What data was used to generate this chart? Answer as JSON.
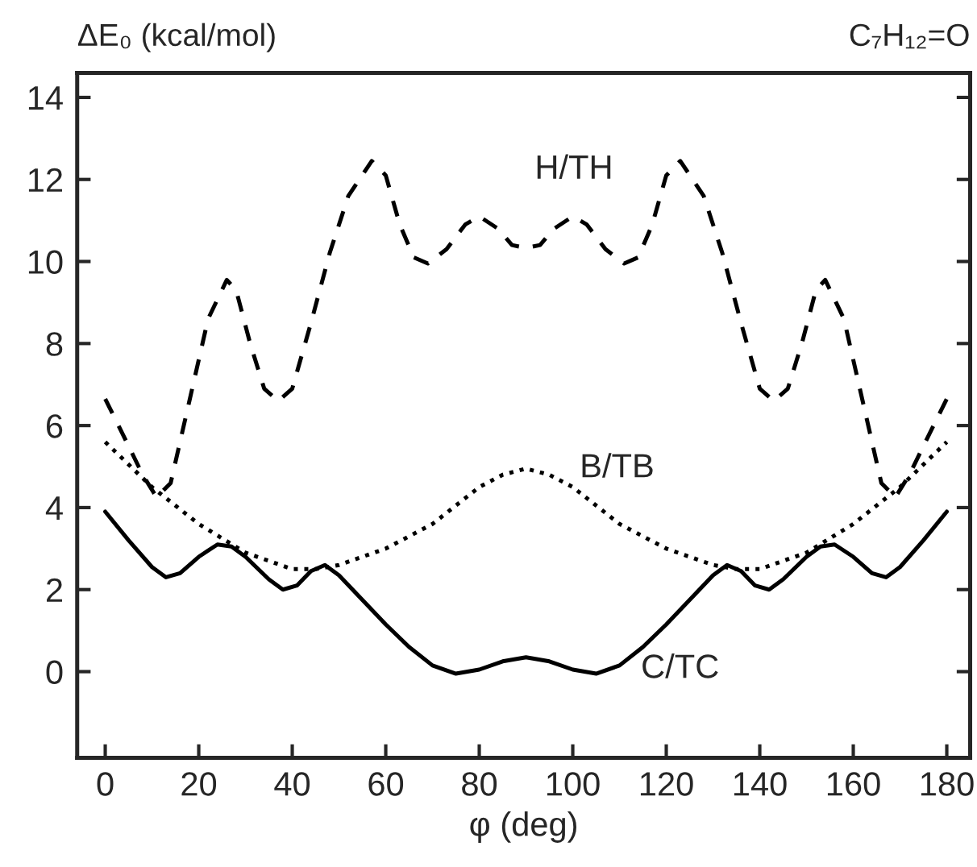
{
  "chart_data": {
    "type": "line",
    "title": "C₇H₁₂=O",
    "ylabel": "ΔE₀ (kcal/mol)",
    "xlabel": "φ (deg)",
    "xlim": [
      -6,
      185
    ],
    "ylim": [
      -2.1,
      14.6
    ],
    "xticks": [
      0,
      20,
      40,
      60,
      80,
      100,
      120,
      140,
      160,
      180
    ],
    "yticks": [
      0,
      2,
      4,
      6,
      8,
      10,
      12,
      14
    ],
    "grid": false,
    "legend": false,
    "series": [
      {
        "name": "H/TH",
        "color": "#000000",
        "line_style": "dashed",
        "x": [
          0,
          5,
          8,
          11,
          14,
          18,
          22,
          26,
          28,
          31,
          34,
          37,
          40,
          44,
          48,
          52,
          57,
          60,
          63,
          66,
          69,
          73,
          77,
          80,
          84,
          87,
          90,
          93,
          96,
          100,
          103,
          107,
          111,
          114,
          117,
          120,
          123,
          128,
          132,
          136,
          140,
          143,
          146,
          149,
          152,
          154,
          158,
          162,
          166,
          169,
          172,
          175,
          180
        ],
        "values": [
          6.65,
          5.5,
          4.8,
          4.25,
          4.6,
          6.6,
          8.6,
          9.55,
          9.3,
          8.0,
          6.9,
          6.6,
          6.9,
          8.5,
          10.2,
          11.6,
          12.45,
          12.1,
          10.9,
          10.1,
          9.95,
          10.3,
          10.9,
          11.1,
          10.8,
          10.4,
          10.33,
          10.4,
          10.8,
          11.1,
          10.9,
          10.3,
          9.95,
          10.1,
          10.9,
          12.1,
          12.45,
          11.6,
          10.2,
          8.5,
          6.9,
          6.6,
          6.9,
          8.0,
          9.3,
          9.55,
          8.6,
          6.6,
          4.6,
          4.25,
          4.8,
          5.5,
          6.65
        ]
      },
      {
        "name": "B/TB",
        "color": "#000000",
        "line_style": "dotted",
        "x": [
          0,
          10,
          20,
          30,
          40,
          45,
          50,
          60,
          70,
          80,
          85,
          90,
          95,
          100,
          110,
          120,
          130,
          135,
          140,
          150,
          160,
          170,
          180
        ],
        "values": [
          5.6,
          4.5,
          3.6,
          2.9,
          2.5,
          2.5,
          2.6,
          3.0,
          3.6,
          4.5,
          4.8,
          4.95,
          4.8,
          4.5,
          3.6,
          3.0,
          2.6,
          2.5,
          2.5,
          2.9,
          3.6,
          4.5,
          5.6
        ]
      },
      {
        "name": "C/TC",
        "color": "#000000",
        "line_style": "solid",
        "x": [
          0,
          5,
          10,
          13,
          16,
          20,
          24,
          27,
          30,
          35,
          38,
          41,
          44,
          47,
          50,
          55,
          60,
          65,
          70,
          75,
          80,
          85,
          90,
          95,
          100,
          105,
          110,
          115,
          120,
          125,
          130,
          133,
          136,
          139,
          142,
          145,
          150,
          153,
          156,
          160,
          164,
          167,
          170,
          175,
          180
        ],
        "values": [
          3.9,
          3.2,
          2.55,
          2.3,
          2.4,
          2.8,
          3.1,
          3.05,
          2.8,
          2.25,
          2.0,
          2.1,
          2.45,
          2.6,
          2.35,
          1.75,
          1.15,
          0.6,
          0.15,
          -0.05,
          0.05,
          0.25,
          0.35,
          0.25,
          0.05,
          -0.05,
          0.15,
          0.6,
          1.15,
          1.75,
          2.35,
          2.6,
          2.45,
          2.1,
          2.0,
          2.25,
          2.8,
          3.05,
          3.1,
          2.8,
          2.4,
          2.3,
          2.55,
          3.2,
          3.9
        ]
      }
    ]
  }
}
